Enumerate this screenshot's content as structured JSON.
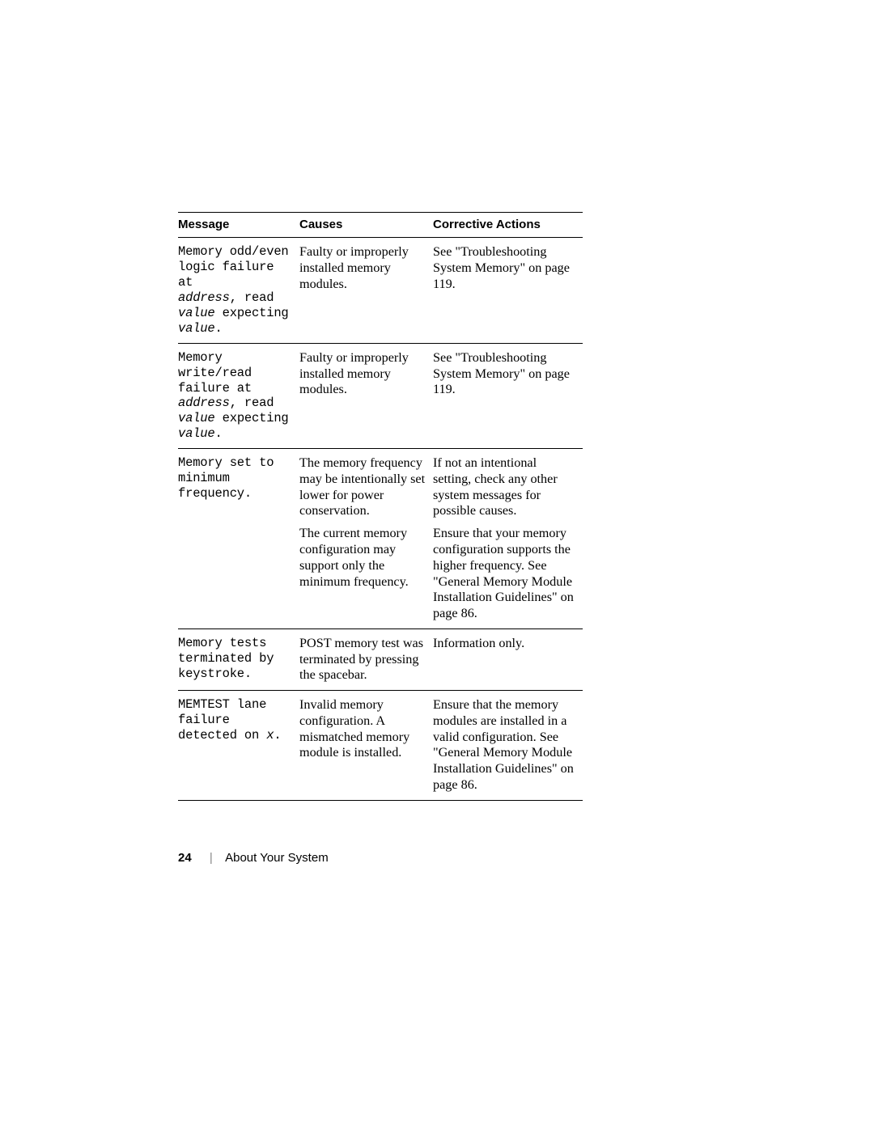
{
  "table": {
    "headers": {
      "message": "Message",
      "causes": "Causes",
      "actions": "Corrective Actions"
    },
    "row1": {
      "msg_a": "Memory odd/even",
      "msg_b": "logic failure at ",
      "msg_c": "address",
      "msg_d": ", read ",
      "msg_e": "value",
      "msg_f": " expecting ",
      "msg_g": "value",
      "msg_h": ".",
      "cause": "Faulty or improperly installed memory modules.",
      "action": "See \"Troubleshooting System Memory\" on page 119."
    },
    "row2": {
      "msg_a": "Memory write/read failure at ",
      "msg_b": "address",
      "msg_c": ", read ",
      "msg_d": "value",
      "msg_e": " expecting ",
      "msg_f": "value",
      "msg_g": ".",
      "cause": "Faulty or improperly installed memory modules.",
      "action": "See \"Troubleshooting System Memory\" on page 119."
    },
    "row3a": {
      "msg": "Memory set to minimum frequency.",
      "cause": "The memory frequency may be intentionally set lower for power conservation.",
      "action": "If not an intentional setting, check any other system messages for possible causes."
    },
    "row3b": {
      "cause": "The current memory configuration may support only the minimum frequency.",
      "action": "Ensure that your memory configuration supports the higher frequency. See \"General Memory Module Installation Guidelines\" on page 86."
    },
    "row4": {
      "msg": "Memory tests terminated by keystroke.",
      "cause": "POST memory test was terminated by pressing the spacebar.",
      "action": "Information only."
    },
    "row5": {
      "msg_a": "MEMTEST lane failure detected on ",
      "msg_b": "x",
      "msg_c": ".",
      "cause": "Invalid memory configuration. A mismatched memory module is installed.",
      "action": "Ensure that the memory modules are installed in a valid configuration. See \"General Memory Module Installation Guidelines\" on page 86."
    }
  },
  "footer": {
    "page_number": "24",
    "section": "About Your System"
  }
}
